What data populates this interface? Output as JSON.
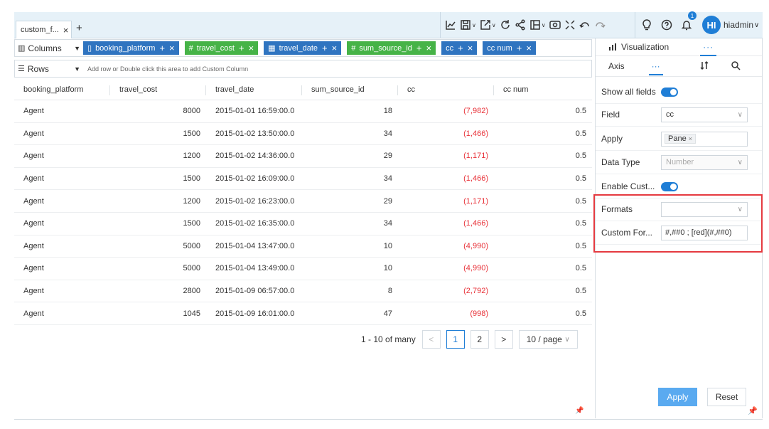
{
  "tabs": [
    {
      "label": "custom_f...",
      "close": "×"
    }
  ],
  "tab_add": "+",
  "toolbar": {
    "tools": [
      "line-chart-icon",
      "save-icon",
      "export-icon",
      "refresh-icon",
      "share-icon",
      "layout-icon",
      "preview-icon",
      "fullscreen-icon",
      "undo-icon",
      "redo-icon"
    ],
    "caret": "∨",
    "notification_count": "1",
    "avatar_initials": "HI",
    "username": "hiadmin",
    "user_caret": "∨"
  },
  "shelves": {
    "columns_label": "Columns",
    "rows_label": "Rows",
    "rows_placeholder": "Add row or Double click this area to add Custom Column",
    "pills": [
      {
        "label": "booking_platform",
        "icon": "▯",
        "color": "blue"
      },
      {
        "label": "travel_cost",
        "icon": "#",
        "color": "green"
      },
      {
        "label": "travel_date",
        "icon": "▦",
        "color": "blue"
      },
      {
        "label": "sum_source_id",
        "icon": "#",
        "color": "green"
      },
      {
        "label": "cc",
        "icon": "",
        "color": "blue"
      },
      {
        "label": "cc num",
        "icon": "",
        "color": "blue"
      }
    ],
    "pill_add": "+",
    "pill_remove": "×"
  },
  "table": {
    "columns": [
      "booking_platform",
      "travel_cost",
      "travel_date",
      "sum_source_id",
      "cc",
      "cc num"
    ],
    "rows": [
      [
        "Agent",
        "8000",
        "2015-01-01 16:59:00.0",
        "18",
        "(7,982)",
        "0.5"
      ],
      [
        "Agent",
        "1500",
        "2015-01-02 13:50:00.0",
        "34",
        "(1,466)",
        "0.5"
      ],
      [
        "Agent",
        "1200",
        "2015-01-02 14:36:00.0",
        "29",
        "(1,171)",
        "0.5"
      ],
      [
        "Agent",
        "1500",
        "2015-01-02 16:09:00.0",
        "34",
        "(1,466)",
        "0.5"
      ],
      [
        "Agent",
        "1200",
        "2015-01-02 16:23:00.0",
        "29",
        "(1,171)",
        "0.5"
      ],
      [
        "Agent",
        "1500",
        "2015-01-02 16:35:00.0",
        "34",
        "(1,466)",
        "0.5"
      ],
      [
        "Agent",
        "5000",
        "2015-01-04 13:47:00.0",
        "10",
        "(4,990)",
        "0.5"
      ],
      [
        "Agent",
        "5000",
        "2015-01-04 13:49:00.0",
        "10",
        "(4,990)",
        "0.5"
      ],
      [
        "Agent",
        "2800",
        "2015-01-09 06:57:00.0",
        "8",
        "(2,792)",
        "0.5"
      ],
      [
        "Agent",
        "1045",
        "2015-01-09 16:01:00.0",
        "47",
        "(998)",
        "0.5"
      ]
    ],
    "negative_color": "#e8333a"
  },
  "pagination": {
    "info": "1 - 10 of many",
    "prev": "<",
    "pages": [
      "1",
      "2"
    ],
    "next": ">",
    "page_size": "10 / page",
    "page_size_caret": "∨"
  },
  "panel": {
    "tab_visualization": "Visualization",
    "tab_more": "···",
    "sub_axis": "Axis",
    "sub_more": "···",
    "show_all_fields_label": "Show all fields",
    "field_label": "Field",
    "field_value": "cc",
    "apply_label": "Apply",
    "apply_tag": "Pane",
    "tag_remove": "×",
    "data_type_label": "Data Type",
    "data_type_value": "Number",
    "enable_custom_label": "Enable Cust...",
    "formats_label": "Formats",
    "formats_value": "",
    "custom_format_label": "Custom For...",
    "custom_format_value": "#,##0 ; [red](#,##0)",
    "chevron": "∨",
    "apply_button": "Apply",
    "reset_button": "Reset"
  },
  "colors": {
    "accent": "#1f7ed6",
    "pill_blue": "#2f74c0",
    "pill_green": "#46b347",
    "highlight": "#e53a40",
    "apply_button": "#5aaaf0"
  }
}
